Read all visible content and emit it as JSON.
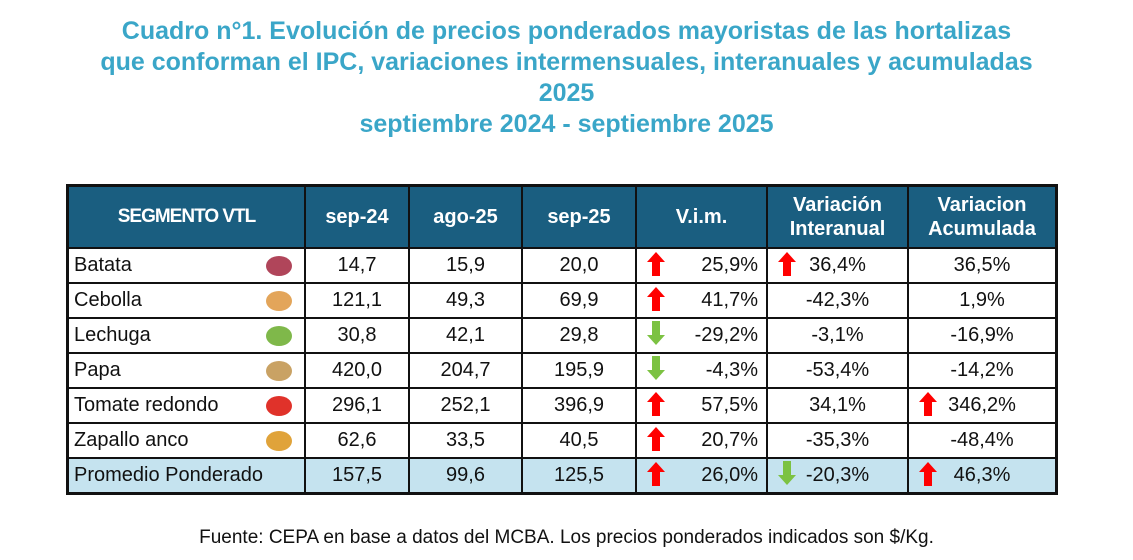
{
  "title": [
    "Cuadro n°1. Evolución de precios ponderados mayoristas de las hortalizas",
    "que conforman el IPC, variaciones intermensuales, interanuales y acumuladas",
    "2025",
    "septiembre 2024 - septiembre 2025"
  ],
  "headers": {
    "segment": "SEGMENTO VTL",
    "c1": "sep-24",
    "c2": "ago-25",
    "c3": "sep-25",
    "vim": "V.i.m.",
    "inter1": "Variación",
    "inter2": "Interanual",
    "acum1": "Variacion",
    "acum2": "Acumulada"
  },
  "rows": [
    {
      "name": "Batata",
      "icon": "sweet-potato-icon",
      "color": "#b0455a",
      "sep24": "14,7",
      "ago25": "15,9",
      "sep25": "20,0",
      "vim": "25,9%",
      "vim_dir": "up",
      "inter": "36,4%",
      "inter_dir": "up",
      "acum": "36,5%",
      "acum_dir": ""
    },
    {
      "name": "Cebolla",
      "icon": "onion-icon",
      "color": "#e3a55a",
      "sep24": "121,1",
      "ago25": "49,3",
      "sep25": "69,9",
      "vim": "41,7%",
      "vim_dir": "up",
      "inter": "-42,3%",
      "inter_dir": "",
      "acum": "1,9%",
      "acum_dir": ""
    },
    {
      "name": "Lechuga",
      "icon": "lettuce-icon",
      "color": "#7fb84a",
      "sep24": "30,8",
      "ago25": "42,1",
      "sep25": "29,8",
      "vim": "-29,2%",
      "vim_dir": "down",
      "inter": "-3,1%",
      "inter_dir": "",
      "acum": "-16,9%",
      "acum_dir": ""
    },
    {
      "name": "Papa",
      "icon": "potato-icon",
      "color": "#c9a264",
      "sep24": "420,0",
      "ago25": "204,7",
      "sep25": "195,9",
      "vim": "-4,3%",
      "vim_dir": "down",
      "inter": "-53,4%",
      "inter_dir": "",
      "acum": "-14,2%",
      "acum_dir": ""
    },
    {
      "name": "Tomate redondo",
      "icon": "tomato-icon",
      "color": "#e0322a",
      "sep24": "296,1",
      "ago25": "252,1",
      "sep25": "396,9",
      "vim": "57,5%",
      "vim_dir": "up",
      "inter": "34,1%",
      "inter_dir": "",
      "acum": "346,2%",
      "acum_dir": "up"
    },
    {
      "name": "Zapallo anco",
      "icon": "squash-icon",
      "color": "#e0a33a",
      "sep24": "62,6",
      "ago25": "33,5",
      "sep25": "40,5",
      "vim": "20,7%",
      "vim_dir": "up",
      "inter": "-35,3%",
      "inter_dir": "",
      "acum": "-48,4%",
      "acum_dir": ""
    },
    {
      "name": "Promedio Ponderado",
      "icon": "",
      "color": "",
      "sep24": "157,5",
      "ago25": "99,6",
      "sep25": "125,5",
      "vim": "26,0%",
      "vim_dir": "up",
      "inter": "-20,3%",
      "inter_dir": "down",
      "acum": "46,3%",
      "acum_dir": "up"
    }
  ],
  "source": "Fuente: CEPA en base a datos del MCBA. Los precios ponderados indicados son $/Kg."
}
